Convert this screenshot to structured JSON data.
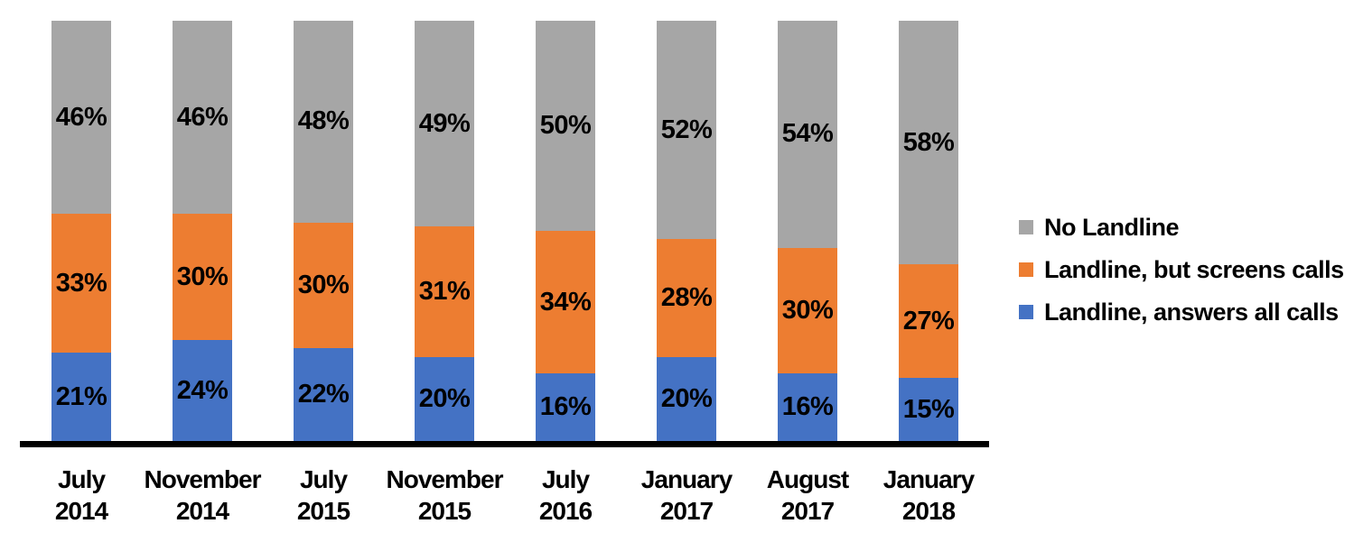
{
  "chart_data": {
    "type": "bar",
    "stacked": true,
    "orientation": "vertical",
    "title": "",
    "xlabel": "",
    "ylabel": "",
    "ylim": [
      0,
      100
    ],
    "grid": false,
    "value_suffix": "%",
    "label_color": "#000000",
    "axis_color": "#000000",
    "categories": [
      {
        "month": "July",
        "year": "2014"
      },
      {
        "month": "November",
        "year": "2014"
      },
      {
        "month": "July",
        "year": "2015"
      },
      {
        "month": "November",
        "year": "2015"
      },
      {
        "month": "July",
        "year": "2016"
      },
      {
        "month": "January",
        "year": "2017"
      },
      {
        "month": "August",
        "year": "2017"
      },
      {
        "month": "January",
        "year": "2018"
      }
    ],
    "series": [
      {
        "name": "Landline, answers all calls",
        "color": "#4472C4",
        "values": [
          21,
          24,
          22,
          20,
          16,
          20,
          16,
          15
        ]
      },
      {
        "name": "Landline, but screens calls",
        "color": "#ED7D31",
        "values": [
          33,
          30,
          30,
          31,
          34,
          28,
          30,
          27
        ]
      },
      {
        "name": "No Landline",
        "color": "#A6A6A6",
        "values": [
          46,
          46,
          48,
          49,
          50,
          52,
          54,
          58
        ]
      }
    ],
    "legend": {
      "position": "right",
      "items": [
        {
          "label": "No Landline",
          "color": "#A6A6A6"
        },
        {
          "label": "Landline, but screens calls",
          "color": "#ED7D31"
        },
        {
          "label": "Landline, answers all calls",
          "color": "#4472C4"
        }
      ]
    }
  }
}
